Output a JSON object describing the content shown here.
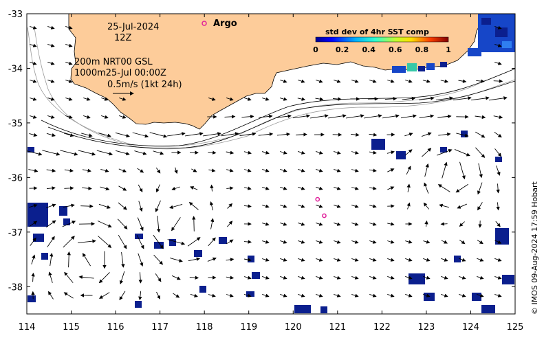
{
  "map": {
    "date": "25-Jul-2024",
    "hour": "12Z",
    "legend_argo": "Argo",
    "depth_line1": "200m  NRT00 GSL",
    "depth_line2": "1000m25-Jul 00:00Z",
    "scale_label": "0.5m/s (1kt 24h)",
    "colorbar_title": "std dev of 4hr SST comp",
    "colorbar_ticks": [
      "0",
      "0.2",
      "0.4",
      "0.6",
      "0.8",
      "1"
    ],
    "credit": "© IMOS 09-Aug-2024 17:59 Hobart",
    "x_ticks": [
      "114",
      "115",
      "116",
      "117",
      "118",
      "119",
      "120",
      "121",
      "122",
      "123",
      "124",
      "125"
    ],
    "y_ticks": [
      "-33",
      "-34",
      "-35",
      "-36",
      "-37",
      "-38"
    ],
    "x_range": [
      114,
      125
    ],
    "y_range": [
      -38.5,
      -33
    ],
    "argo_floats": [
      {
        "lon": 120.55,
        "lat": -36.4
      },
      {
        "lon": 120.7,
        "lat": -36.7
      }
    ],
    "colors": {
      "land": "#fdcc9a",
      "coast": "#000000",
      "sst_low": "#0b1f8e",
      "sst_mid": "#1b56d6",
      "argo": "#e0209a"
    }
  }
}
